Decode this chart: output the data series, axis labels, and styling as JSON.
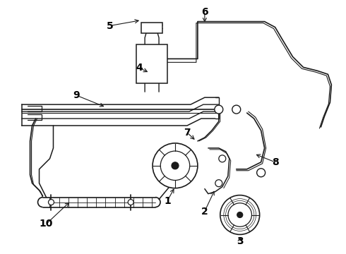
{
  "background_color": "#ffffff",
  "line_color": "#1a1a1a",
  "label_color": "#000000",
  "label_fontsize": 10,
  "fig_width": 4.9,
  "fig_height": 3.6,
  "dpi": 100
}
